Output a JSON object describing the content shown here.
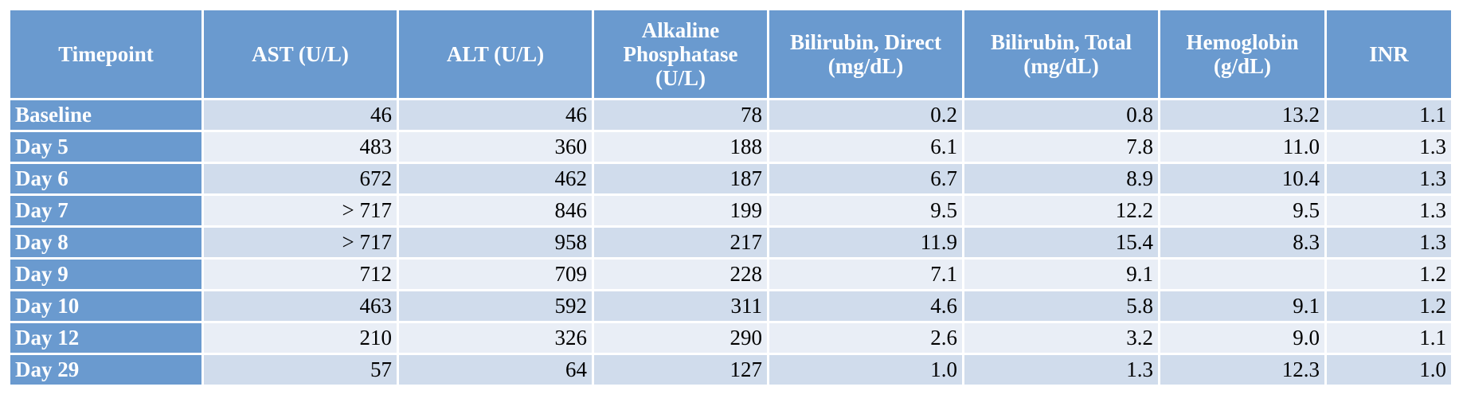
{
  "header": {
    "columns": [
      "Timepoint",
      "AST (U/L)",
      "ALT (U/L)",
      "Alkaline Phosphatase (U/L)",
      "Bilirubin, Direct (mg/dL)",
      "Bilirubin, Total (mg/dL)",
      "Hemoglobin (g/dL)",
      "INR"
    ]
  },
  "table": {
    "rows": [
      [
        "Baseline",
        "46",
        "46",
        "78",
        "0.2",
        "0.8",
        "13.2",
        "1.1"
      ],
      [
        "Day 5",
        "483",
        "360",
        "188",
        "6.1",
        "7.8",
        "11.0",
        "1.3"
      ],
      [
        "Day 6",
        "672",
        "462",
        "187",
        "6.7",
        "8.9",
        "10.4",
        "1.3"
      ],
      [
        "Day 7",
        "> 717",
        "846",
        "199",
        "9.5",
        "12.2",
        "9.5",
        "1.3"
      ],
      [
        "Day 8",
        "> 717",
        "958",
        "217",
        "11.9",
        "15.4",
        "8.3",
        "1.3"
      ],
      [
        "Day 9",
        "712",
        "709",
        "228",
        "7.1",
        "9.1",
        null,
        "1.2"
      ],
      [
        "Day 10",
        "463",
        "592",
        "311",
        "4.6",
        "5.8",
        "9.1",
        "1.2"
      ],
      [
        "Day 12",
        "210",
        "326",
        "290",
        "2.6",
        "3.2",
        "9.0",
        "1.1"
      ],
      [
        "Day 29",
        "57",
        "64",
        "127",
        "1.0",
        "1.3",
        "12.3",
        "1.0"
      ]
    ]
  }
}
